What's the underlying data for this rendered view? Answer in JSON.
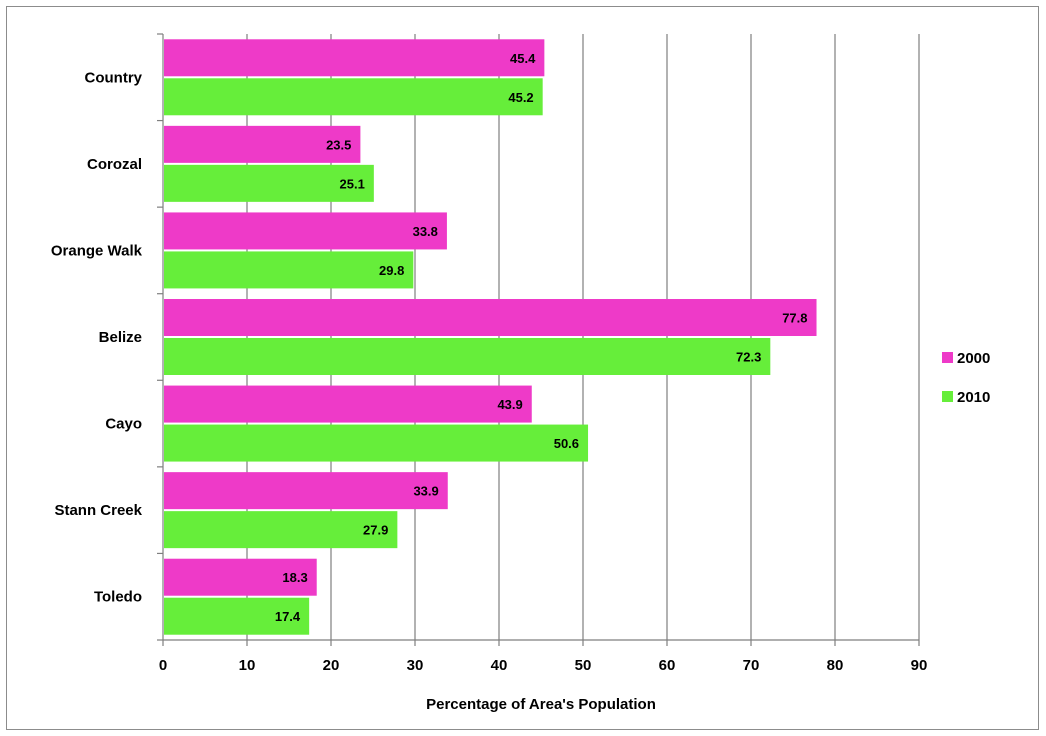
{
  "chart_data": {
    "type": "bar",
    "orientation": "horizontal",
    "categories": [
      "Country",
      "Corozal",
      "Orange Walk",
      "Belize",
      "Cayo",
      "Stann Creek",
      "Toledo"
    ],
    "series": [
      {
        "name": "2000",
        "color": "#EE3AC8",
        "values": [
          45.4,
          23.5,
          33.8,
          77.8,
          43.9,
          33.9,
          18.3
        ]
      },
      {
        "name": "2010",
        "color": "#66EE3A",
        "values": [
          45.2,
          25.1,
          29.8,
          72.3,
          50.6,
          27.9,
          17.4
        ]
      }
    ],
    "xlabel": "Percentage of Area's Population",
    "ylabel": "",
    "xlim": [
      0,
      90
    ],
    "x_ticks": [
      "0",
      "10",
      "20",
      "30",
      "40",
      "50",
      "60",
      "70",
      "80",
      "90"
    ],
    "grid": "vertical",
    "legend_position": "right",
    "data_labels": true
  }
}
